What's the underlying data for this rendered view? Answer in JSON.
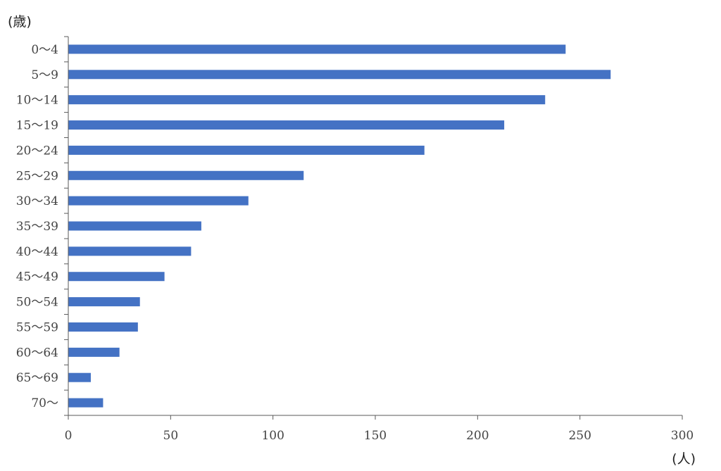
{
  "chart_data": {
    "type": "bar",
    "orientation": "horizontal",
    "categories": [
      "0〜4",
      "5〜9",
      "10〜14",
      "15〜19",
      "20〜24",
      "25〜29",
      "30〜34",
      "35〜39",
      "40〜44",
      "45〜49",
      "50〜54",
      "55〜59",
      "60〜64",
      "65〜69",
      "70〜"
    ],
    "values": [
      243,
      265,
      233,
      213,
      174,
      115,
      88,
      65,
      60,
      47,
      35,
      34,
      25,
      11,
      17
    ],
    "title": "",
    "xlabel": "(人)",
    "ylabel": "(歳)",
    "xlim": [
      0,
      300
    ],
    "xticks": [
      "0",
      "50",
      "100",
      "150",
      "200",
      "250",
      "300"
    ],
    "grid": false,
    "legend": "none",
    "bar_color": "#4472C4",
    "axis_color": "#595959"
  }
}
